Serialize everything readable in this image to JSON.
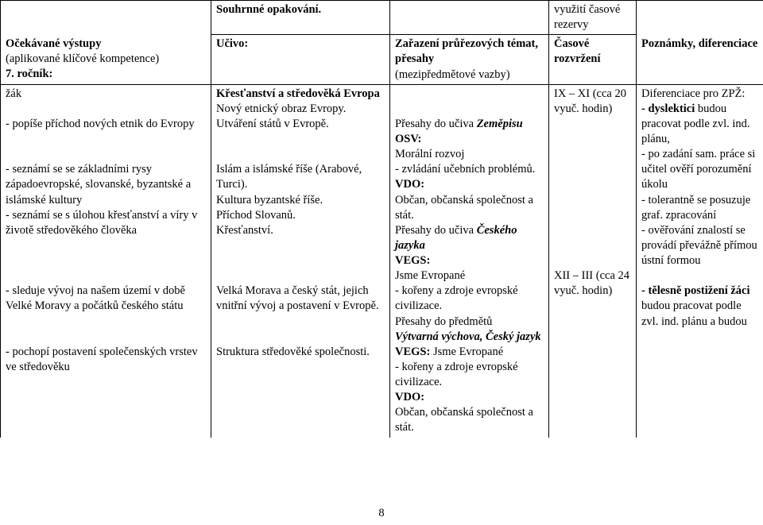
{
  "row1": {
    "c2": "Souhrnné opakování.",
    "c4": "využití časové rezervy"
  },
  "row2": {
    "c1_l1": "Očekávané výstupy",
    "c1_l2": "(aplikované klíčové kompetence)",
    "c1_l3": "7. ročník:",
    "c2": "Učivo:",
    "c3_l1": "Zařazení průřezových témat, přesahy",
    "c3_l2": "(mezipředmětové vazby)",
    "c4": "Časové rozvržení",
    "c5": "Poznámky, diferenciace"
  },
  "row3": {
    "c1_a": "žák",
    "c1_b": "- popíše příchod nových etnik do Evropy",
    "c1_c": "- seznámí se se základními rysy západoevropské, slovanské, byzantské a islámské kultury",
    "c1_d": "- seznámí se s úlohou křesťanství a víry v životě středověkého člověka",
    "c1_e": "- sleduje vývoj na našem území v době Velké Moravy a počátků českého státu",
    "c1_f": "- pochopí postavení společenských vrstev ve středověku",
    "c2_a": "Křesťanství a středověká Evropa",
    "c2_b": "Nový etnický obraz Evropy. Utváření států v Evropě.",
    "c2_c": "Islám a islámské říše (Arabové, Turci).",
    "c2_d": "Kultura byzantské říše.",
    "c2_e": "Příchod Slovanů.",
    "c2_f": "Křesťanství.",
    "c2_g": "Velká Morava a český stát, jejich vnitřní vývoj a postavení v Evropě.",
    "c2_h": "Struktura středověké společnosti.",
    "c3_a_pre": "Přesahy do učiva ",
    "c3_a_it": "Zeměpisu",
    "c3_b": "OSV:",
    "c3_c": "Morální rozvoj",
    "c3_d": "- zvládání učebních problémů.",
    "c3_e": "VDO:",
    "c3_f": "Občan, občanská společnost a stát.",
    "c3_g_pre": "Přesahy do učiva ",
    "c3_g_it": "Českého jazyka",
    "c3_h": "VEGS:",
    "c3_i": "Jsme Evropané",
    "c3_j": "- kořeny a zdroje evropské civilizace.",
    "c3_k_pre": "Přesahy do předmětů ",
    "c3_k_it": "Výtvarná výchova, Český jazyk",
    "c3_l_pre": "VEGS: ",
    "c3_l_rest": "Jsme Evropané",
    "c3_m": "- kořeny a zdroje evropské civilizace.",
    "c3_n": "VDO:",
    "c3_o": "Občan, občanská společnost a stát.",
    "c4_a": "IX – XI (cca 20 vyuč. hodin)",
    "c4_b": "XII – III (cca 24 vyuč. hodin)",
    "c5_a": "Diferenciace pro ZPŽ:",
    "c5_b_b": "- dyslektici",
    "c5_b_r": " budou pracovat podle zvl. ind. plánu,",
    "c5_c": "- po zadání sam. práce si učitel ověří porozumění úkolu",
    "c5_d": "- tolerantně se posuzuje graf. zpracování",
    "c5_e": "- ověřování znalostí se provádí převážně přímou ústní formou",
    "c5_f_b": "- tělesně postižení žáci",
    "c5_f_r": " budou pracovat podle zvl. ind. plánu a budou"
  },
  "page": "8"
}
